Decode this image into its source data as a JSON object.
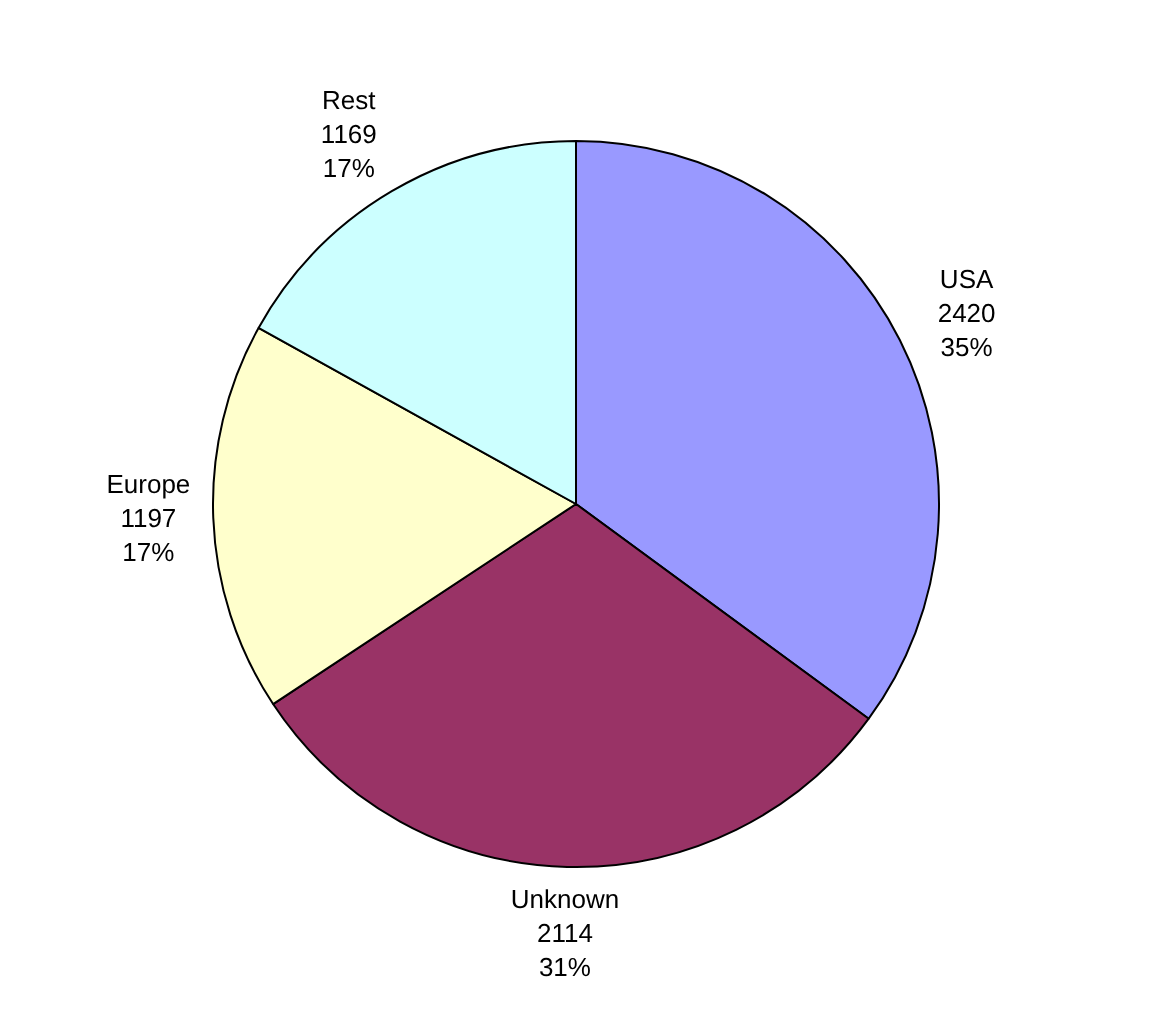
{
  "chart_data": {
    "type": "pie",
    "categories": [
      "USA",
      "Unknown",
      "Europe",
      "Rest"
    ],
    "values": [
      2420,
      2114,
      1197,
      1169
    ],
    "colors": [
      "#9999ff",
      "#993366",
      "#ffffcc",
      "#ccffff"
    ],
    "value_labels": [
      "2420\n35%",
      "2114\n31%",
      "1197\n17%",
      "1169\n17%"
    ],
    "legend": false
  }
}
